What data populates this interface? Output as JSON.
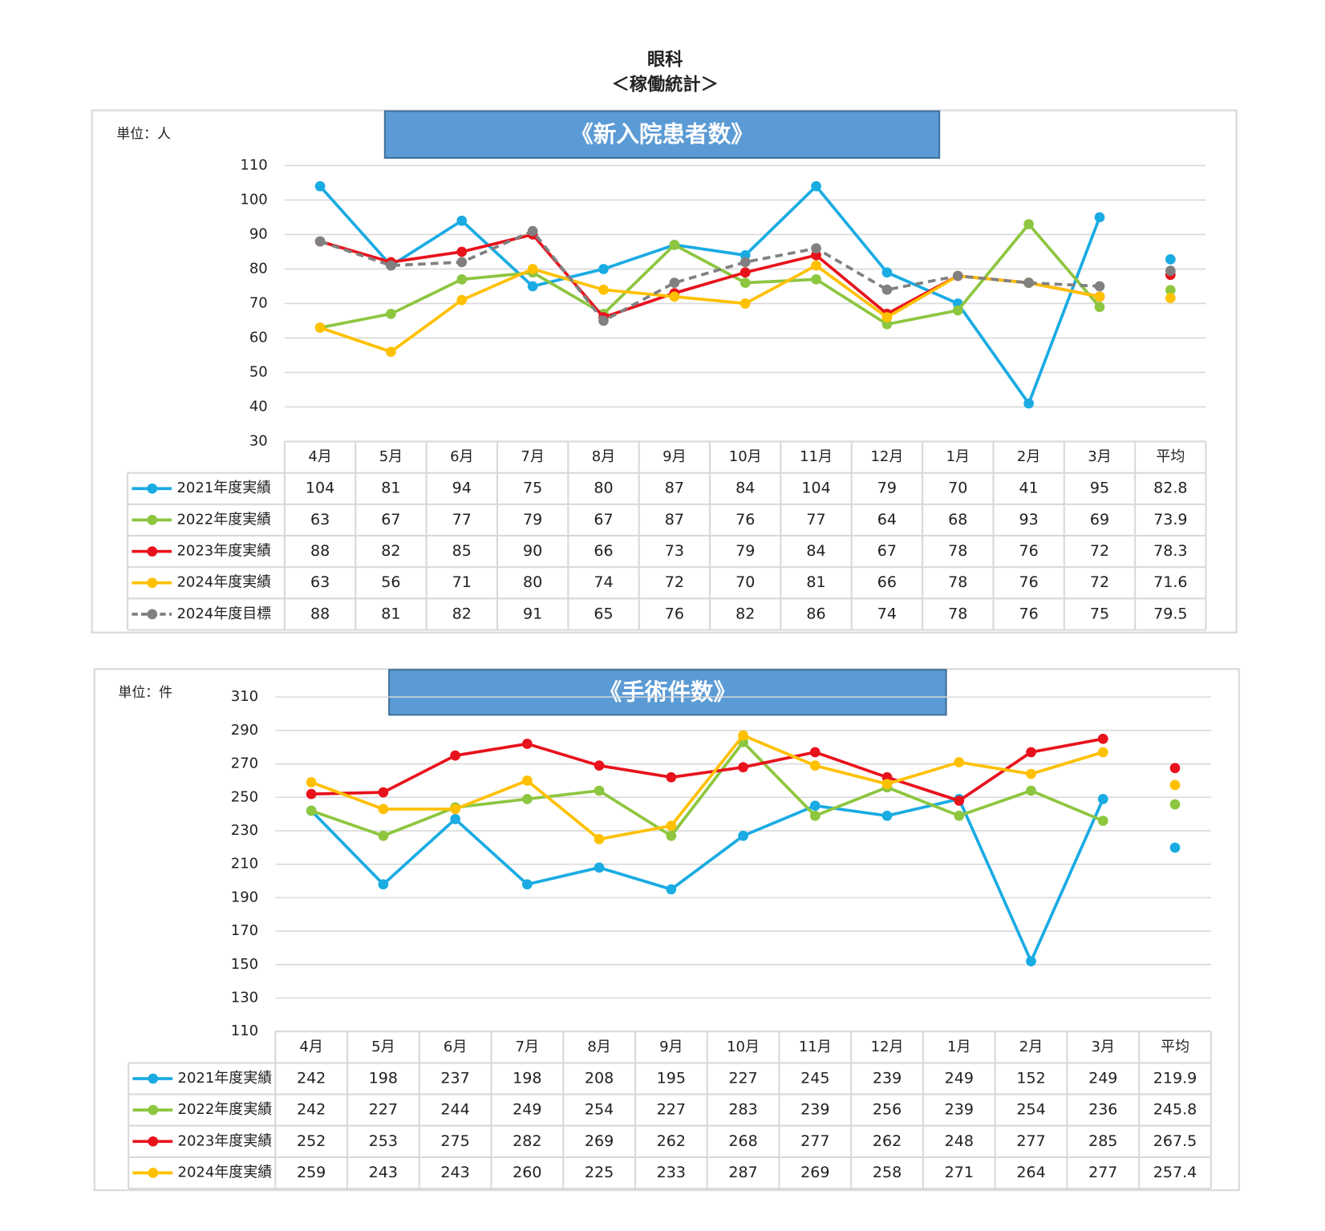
{
  "header": {
    "title": "眼科",
    "subtitle": "＜稼働統計＞"
  },
  "chart_data": [
    {
      "type": "line",
      "title": "《新入院患者数》",
      "unit": "単位：人",
      "categories": [
        "4月",
        "5月",
        "6月",
        "7月",
        "8月",
        "9月",
        "10月",
        "11月",
        "12月",
        "1月",
        "2月",
        "3月"
      ],
      "average_label": "平均",
      "ylim": [
        30,
        110
      ],
      "yticks": [
        30,
        40,
        50,
        60,
        70,
        80,
        90,
        100,
        110
      ],
      "grid": true,
      "series": [
        {
          "name": "2021年度実績",
          "color": "#1aabe3",
          "values": [
            104,
            81,
            94,
            75,
            80,
            87,
            84,
            104,
            79,
            70,
            41,
            95
          ],
          "average": 82.8
        },
        {
          "name": "2022年度実績",
          "color": "#8dc63f",
          "values": [
            63,
            67,
            77,
            79,
            67,
            87,
            76,
            77,
            64,
            68,
            93,
            69
          ],
          "average": 73.9
        },
        {
          "name": "2023年度実績",
          "color": "#e8121c",
          "values": [
            88,
            82,
            85,
            90,
            66,
            73,
            79,
            84,
            67,
            78,
            76,
            72
          ],
          "average": 78.3
        },
        {
          "name": "2024年度実績",
          "color": "#ffc000",
          "values": [
            63,
            56,
            71,
            80,
            74,
            72,
            70,
            81,
            66,
            78,
            76,
            72
          ],
          "average": 71.6
        },
        {
          "name": "2024年度目標",
          "color": "#808080",
          "dashed": true,
          "values": [
            88,
            81,
            82,
            91,
            65,
            76,
            82,
            86,
            74,
            78,
            76,
            75
          ],
          "average": 79.5
        }
      ]
    },
    {
      "type": "line",
      "title": "《手術件数》",
      "unit": "単位：件",
      "categories": [
        "4月",
        "5月",
        "6月",
        "7月",
        "8月",
        "9月",
        "10月",
        "11月",
        "12月",
        "1月",
        "2月",
        "3月"
      ],
      "average_label": "平均",
      "ylim": [
        110,
        310
      ],
      "yticks": [
        110,
        130,
        150,
        170,
        190,
        210,
        230,
        250,
        270,
        290,
        310
      ],
      "grid": true,
      "series": [
        {
          "name": "2021年度実績",
          "color": "#1aabe3",
          "values": [
            242,
            198,
            237,
            198,
            208,
            195,
            227,
            245,
            239,
            249,
            152,
            249
          ],
          "average": 219.9
        },
        {
          "name": "2022年度実績",
          "color": "#8dc63f",
          "values": [
            242,
            227,
            244,
            249,
            254,
            227,
            283,
            239,
            256,
            239,
            254,
            236
          ],
          "average": 245.8
        },
        {
          "name": "2023年度実績",
          "color": "#e8121c",
          "values": [
            252,
            253,
            275,
            282,
            269,
            262,
            268,
            277,
            262,
            248,
            277,
            285
          ],
          "average": 267.5
        },
        {
          "name": "2024年度実績",
          "color": "#ffc000",
          "values": [
            259,
            243,
            243,
            260,
            225,
            233,
            287,
            269,
            258,
            271,
            264,
            277
          ],
          "average": 257.4
        }
      ]
    }
  ]
}
